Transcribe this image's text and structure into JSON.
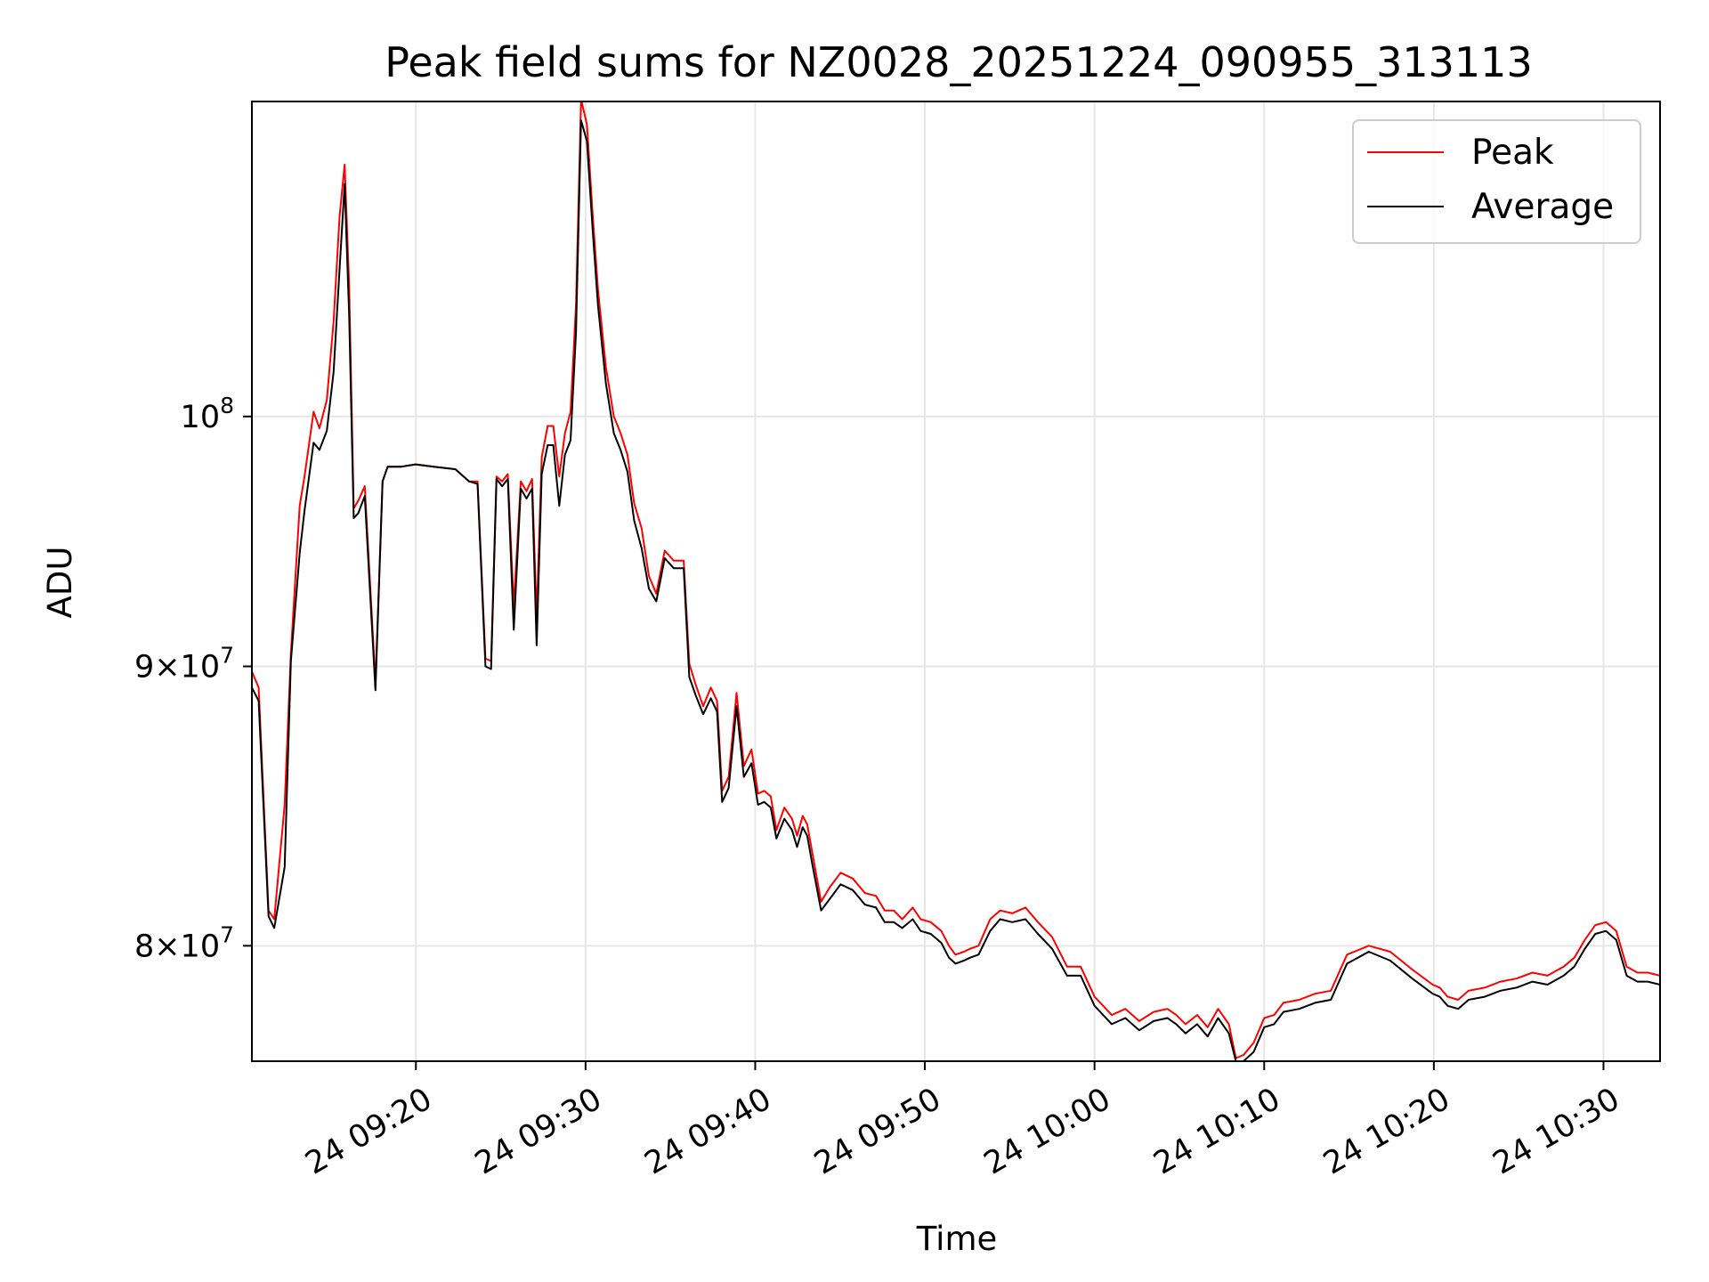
{
  "chart_data": {
    "type": "line",
    "title": "Peak field sums for NZ0028_20251224_090955_313113",
    "xlabel": "Time",
    "ylabel": "ADU",
    "y_scale": "log",
    "xlim": [
      "2025-12-24 09:10:20",
      "2025-12-24 10:33:20"
    ],
    "ylim": [
      76200000,
      114200000
    ],
    "x_ticks": [
      {
        "t": "2025-12-24 09:20:00",
        "label": "24 09:20"
      },
      {
        "t": "2025-12-24 09:30:00",
        "label": "24 09:30"
      },
      {
        "t": "2025-12-24 09:40:00",
        "label": "24 09:40"
      },
      {
        "t": "2025-12-24 09:50:00",
        "label": "24 09:50"
      },
      {
        "t": "2025-12-24 10:00:00",
        "label": "24 10:00"
      },
      {
        "t": "2025-12-24 10:10:00",
        "label": "24 10:10"
      },
      {
        "t": "2025-12-24 10:20:00",
        "label": "24 10:20"
      },
      {
        "t": "2025-12-24 10:30:00",
        "label": "24 10:30"
      }
    ],
    "y_ticks": [
      {
        "v": 80000000,
        "mantissa": "8",
        "exp": "7"
      },
      {
        "v": 90000000,
        "mantissa": "9",
        "exp": "7"
      },
      {
        "v": 100000000,
        "mantissa": "",
        "exp": "8"
      }
    ],
    "grid": true,
    "legend": "top-right",
    "x": [
      "2025-12-24 09:10:20",
      "2025-12-24 09:10:44",
      "2025-12-24 09:11:19",
      "2025-12-24 09:11:39",
      "2025-12-24 09:12:16",
      "2025-12-24 09:12:38",
      "2025-12-24 09:13:09",
      "2025-12-24 09:13:26",
      "2025-12-24 09:13:58",
      "2025-12-24 09:14:19",
      "2025-12-24 09:14:45",
      "2025-12-24 09:15:09",
      "2025-12-24 09:15:30",
      "2025-12-24 09:15:48",
      "2025-12-24 09:16:04",
      "2025-12-24 09:16:20",
      "2025-12-24 09:16:36",
      "2025-12-24 09:16:59",
      "2025-12-24 09:17:37",
      "2025-12-24 09:18:02",
      "2025-12-24 09:18:20",
      "2025-12-24 09:18:38",
      "2025-12-24 09:19:06",
      "2025-12-24 09:19:59",
      "2025-12-24 09:21:03",
      "2025-12-24 09:22:20",
      "2025-12-24 09:23:08",
      "2025-12-24 09:23:38",
      "2025-12-24 09:24:06",
      "2025-12-24 09:24:26",
      "2025-12-24 09:24:45",
      "2025-12-24 09:25:05",
      "2025-12-24 09:25:25",
      "2025-12-24 09:25:46",
      "2025-12-24 09:26:11",
      "2025-12-24 09:26:31",
      "2025-12-24 09:26:51",
      "2025-12-24 09:27:07",
      "2025-12-24 09:27:25",
      "2025-12-24 09:27:46",
      "2025-12-24 09:28:06",
      "2025-12-24 09:28:27",
      "2025-12-24 09:28:47",
      "2025-12-24 09:29:07",
      "2025-12-24 09:29:26",
      "2025-12-24 09:29:44",
      "2025-12-24 09:30:05",
      "2025-12-24 09:30:25",
      "2025-12-24 09:30:44",
      "2025-12-24 09:31:12",
      "2025-12-24 09:31:40",
      "2025-12-24 09:32:04",
      "2025-12-24 09:32:28",
      "2025-12-24 09:32:52",
      "2025-12-24 09:33:18",
      "2025-12-24 09:33:44",
      "2025-12-24 09:34:10",
      "2025-12-24 09:34:40",
      "2025-12-24 09:35:12",
      "2025-12-24 09:35:47",
      "2025-12-24 09:36:07",
      "2025-12-24 09:36:30",
      "2025-12-24 09:36:56",
      "2025-12-24 09:37:23",
      "2025-12-24 09:37:45",
      "2025-12-24 09:38:03",
      "2025-12-24 09:38:26",
      "2025-12-24 09:38:54",
      "2025-12-24 09:39:20",
      "2025-12-24 09:39:47",
      "2025-12-24 09:40:10",
      "2025-12-24 09:40:32",
      "2025-12-24 09:40:55",
      "2025-12-24 09:41:15",
      "2025-12-24 09:41:43",
      "2025-12-24 09:42:10",
      "2025-12-24 09:42:28",
      "2025-12-24 09:42:48",
      "2025-12-24 09:43:04",
      "2025-12-24 09:43:22",
      "2025-12-24 09:43:53",
      "2025-12-24 09:44:24",
      "2025-12-24 09:45:02",
      "2025-12-24 09:45:45",
      "2025-12-24 09:46:28",
      "2025-12-24 09:47:07",
      "2025-12-24 09:47:38",
      "2025-12-24 09:48:10",
      "2025-12-24 09:48:40",
      "2025-12-24 09:49:17",
      "2025-12-24 09:49:45",
      "2025-12-24 09:50:21",
      "2025-12-24 09:50:58",
      "2025-12-24 09:51:25",
      "2025-12-24 09:51:48",
      "2025-12-24 09:52:18",
      "2025-12-24 09:52:40",
      "2025-12-24 09:53:10",
      "2025-12-24 09:53:51",
      "2025-12-24 09:54:26",
      "2025-12-24 09:55:09",
      "2025-12-24 09:55:56",
      "2025-12-24 09:56:40",
      "2025-12-24 09:57:30",
      "2025-12-24 09:58:23",
      "2025-12-24 09:59:11",
      "2025-12-24 10:00:00",
      "2025-12-24 10:01:01",
      "2025-12-24 10:01:49",
      "2025-12-24 10:02:38",
      "2025-12-24 10:03:29",
      "2025-12-24 10:04:18",
      "2025-12-24 10:04:49",
      "2025-12-24 10:05:22",
      "2025-12-24 10:06:03",
      "2025-12-24 10:06:40",
      "2025-12-24 10:07:17",
      "2025-12-24 10:07:55",
      "2025-12-24 10:08:20",
      "2025-12-24 10:08:47",
      "2025-12-24 10:09:23",
      "2025-12-24 10:10:00",
      "2025-12-24 10:10:35",
      "2025-12-24 10:11:08",
      "2025-12-24 10:12:04",
      "2025-12-24 10:13:00",
      "2025-12-24 10:13:56",
      "2025-12-24 10:14:53",
      "2025-12-24 10:16:10",
      "2025-12-24 10:17:26",
      "2025-12-24 10:18:44",
      "2025-12-24 10:19:56",
      "2025-12-24 10:20:21",
      "2025-12-24 10:20:49",
      "2025-12-24 10:21:26",
      "2025-12-24 10:22:03",
      "2025-12-24 10:23:00",
      "2025-12-24 10:23:56",
      "2025-12-24 10:24:52",
      "2025-12-24 10:25:49",
      "2025-12-24 10:26:42",
      "2025-12-24 10:27:39",
      "2025-12-24 10:28:17",
      "2025-12-24 10:28:54",
      "2025-12-24 10:29:31",
      "2025-12-24 10:30:09",
      "2025-12-24 10:30:45",
      "2025-12-24 10:31:22",
      "2025-12-24 10:32:00",
      "2025-12-24 10:32:37",
      "2025-12-24 10:33:20"
    ],
    "series": [
      {
        "name": "Peak",
        "color": "#ff0000",
        "values": [
          89800000,
          89200000,
          81200000,
          80900000,
          84900000,
          90500000,
          96300000,
          97500000,
          100200000,
          99500000,
          100700000,
          104100000,
          108800000,
          111200000,
          105600000,
          96200000,
          96500000,
          97100000,
          89400000,
          97300000,
          97900000,
          97900000,
          97900000,
          98000000,
          97900000,
          97800000,
          97300000,
          97300000,
          90300000,
          90200000,
          97500000,
          97300000,
          97600000,
          92300000,
          97300000,
          96900000,
          97400000,
          91900000,
          98300000,
          99600000,
          99600000,
          97500000,
          99300000,
          100200000,
          104800000,
          114300000,
          113100000,
          108900000,
          105500000,
          102100000,
          100000000,
          99300000,
          98400000,
          96400000,
          95400000,
          93500000,
          92800000,
          94500000,
          94100000,
          94100000,
          90100000,
          89300000,
          88500000,
          89200000,
          88700000,
          85400000,
          85900000,
          89000000,
          86300000,
          86900000,
          85300000,
          85400000,
          85200000,
          84000000,
          84800000,
          84400000,
          83800000,
          84500000,
          84200000,
          83200000,
          81500000,
          82000000,
          82500000,
          82300000,
          81800000,
          81700000,
          81200000,
          81200000,
          80900000,
          81300000,
          80900000,
          80800000,
          80500000,
          80000000,
          79700000,
          79800000,
          79900000,
          80000000,
          80900000,
          81200000,
          81100000,
          81300000,
          80800000,
          80300000,
          79300000,
          79300000,
          78300000,
          77700000,
          77900000,
          77500000,
          77800000,
          77900000,
          77700000,
          77400000,
          77700000,
          77300000,
          77900000,
          77400000,
          76300000,
          76400000,
          76800000,
          77600000,
          77700000,
          78100000,
          78200000,
          78400000,
          78500000,
          79700000,
          80000000,
          79800000,
          79200000,
          78700000,
          78600000,
          78300000,
          78200000,
          78500000,
          78600000,
          78800000,
          78900000,
          79100000,
          79000000,
          79300000,
          79600000,
          80200000,
          80700000,
          80800000,
          80500000,
          79300000,
          79100000,
          79100000,
          79000000
        ]
      },
      {
        "name": "Average",
        "color": "#000000",
        "values": [
          89200000,
          88700000,
          81000000,
          80600000,
          82700000,
          90200000,
          94400000,
          96100000,
          98900000,
          98600000,
          99400000,
          101900000,
          106400000,
          110300000,
          104300000,
          95800000,
          96000000,
          96700000,
          89100000,
          97300000,
          97900000,
          97900000,
          97900000,
          98000000,
          97900000,
          97800000,
          97300000,
          97200000,
          90000000,
          89900000,
          97400000,
          97100000,
          97400000,
          91400000,
          97000000,
          96600000,
          97000000,
          90800000,
          97600000,
          98800000,
          98800000,
          96300000,
          98400000,
          99000000,
          103600000,
          113300000,
          112300000,
          108200000,
          104800000,
          101400000,
          99300000,
          98600000,
          97700000,
          95700000,
          94600000,
          93000000,
          92500000,
          94200000,
          93800000,
          93800000,
          89600000,
          88900000,
          88200000,
          88800000,
          88300000,
          85000000,
          85500000,
          88500000,
          85900000,
          86400000,
          84900000,
          85000000,
          84800000,
          83700000,
          84400000,
          84000000,
          83400000,
          84100000,
          83800000,
          82800000,
          81200000,
          81600000,
          82100000,
          81900000,
          81400000,
          81300000,
          80800000,
          80800000,
          80600000,
          80900000,
          80500000,
          80400000,
          80100000,
          79600000,
          79400000,
          79500000,
          79600000,
          79700000,
          80500000,
          80900000,
          80800000,
          80900000,
          80400000,
          79900000,
          79000000,
          79000000,
          78000000,
          77400000,
          77600000,
          77200000,
          77500000,
          77600000,
          77400000,
          77100000,
          77400000,
          77000000,
          77600000,
          77100000,
          76200000,
          76200000,
          76500000,
          77300000,
          77400000,
          77800000,
          77900000,
          78100000,
          78200000,
          79400000,
          79800000,
          79500000,
          78900000,
          78400000,
          78300000,
          78000000,
          77900000,
          78200000,
          78300000,
          78500000,
          78600000,
          78800000,
          78700000,
          79000000,
          79300000,
          79900000,
          80400000,
          80500000,
          80200000,
          79000000,
          78800000,
          78800000,
          78700000
        ]
      }
    ]
  }
}
